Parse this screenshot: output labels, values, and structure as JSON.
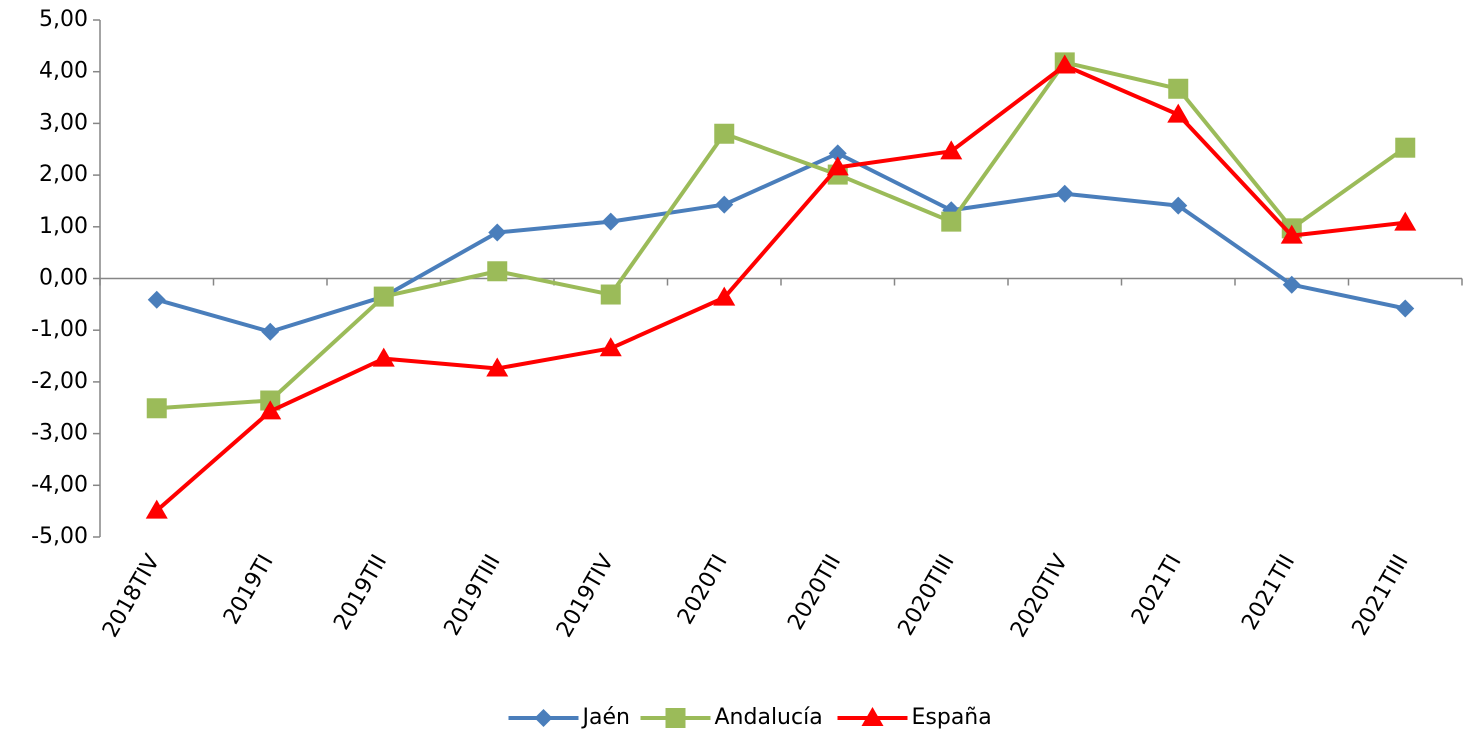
{
  "chart_data": {
    "type": "line",
    "categories": [
      "2018TIV",
      "2019TI",
      "2019TII",
      "2019TIII",
      "2019TIV",
      "2020TI",
      "2020TII",
      "2020TIII",
      "2020TIV",
      "2021TI",
      "2021TII",
      "2021TIII"
    ],
    "series": [
      {
        "name": "Jaén",
        "color": "#4a7ebb",
        "marker": "diamond",
        "values": [
          -0.41,
          -1.03,
          -0.35,
          0.89,
          1.1,
          1.43,
          2.42,
          1.32,
          1.64,
          1.41,
          -0.12,
          -0.58
        ]
      },
      {
        "name": "Andalucía",
        "color": "#9bbb59",
        "marker": "square",
        "values": [
          -2.51,
          -2.36,
          -0.35,
          0.14,
          -0.31,
          2.8,
          2.01,
          1.1,
          4.18,
          3.67,
          0.97,
          2.53
        ]
      },
      {
        "name": "España",
        "color": "#ff0000",
        "marker": "triangle",
        "values": [
          -4.49,
          -2.57,
          -1.55,
          -1.74,
          -1.35,
          -0.37,
          2.15,
          2.46,
          4.12,
          3.17,
          0.83,
          1.08
        ]
      }
    ],
    "ylim": [
      -5,
      5
    ],
    "yticks": [
      {
        "value": -5,
        "label": "-5,00"
      },
      {
        "value": -4,
        "label": "-4,00"
      },
      {
        "value": -3,
        "label": "-3,00"
      },
      {
        "value": -2,
        "label": "-2,00"
      },
      {
        "value": -1,
        "label": "-1,00"
      },
      {
        "value": 0,
        "label": "0,00"
      },
      {
        "value": 1,
        "label": "1,00"
      },
      {
        "value": 2,
        "label": "2,00"
      },
      {
        "value": 3,
        "label": "3,00"
      },
      {
        "value": 4,
        "label": "4,00"
      },
      {
        "value": 5,
        "label": "5,00"
      }
    ],
    "legend": "bottom"
  }
}
